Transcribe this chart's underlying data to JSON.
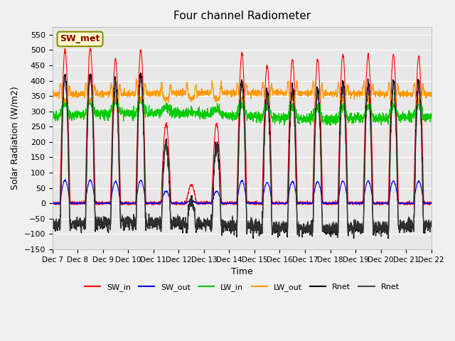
{
  "title": "Four channel Radiometer",
  "xlabel": "Time",
  "ylabel": "Solar Radiation (W/m2)",
  "ylim": [
    -150,
    575
  ],
  "yticks": [
    -150,
    -100,
    -50,
    0,
    50,
    100,
    150,
    200,
    250,
    300,
    350,
    400,
    450,
    500,
    550
  ],
  "x_tick_labels": [
    "Dec 7",
    "Dec 8",
    "Dec 9",
    "Dec 10",
    "Dec 11",
    "Dec 12",
    "Dec 13",
    "Dec 14",
    "Dec 15",
    "Dec 16",
    "Dec 17",
    "Dec 18",
    "Dec 19",
    "Dec 20",
    "Dec 21",
    "Dec 22"
  ],
  "annotation_text": "SW_met",
  "annotation_bg": "#ffffcc",
  "annotation_border": "#888800",
  "bg_color": "#e8e8e8",
  "legend_entries": [
    "SW_in",
    "SW_out",
    "LW_in",
    "LW_out",
    "Rnet",
    "Rnet"
  ],
  "legend_colors": [
    "#ff0000",
    "#0000ff",
    "#00cc00",
    "#ff9900",
    "#000000",
    "#444444"
  ]
}
